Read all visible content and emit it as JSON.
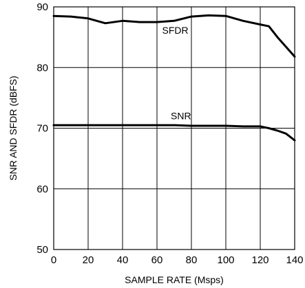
{
  "chart_data": {
    "type": "line",
    "xlabel": "SAMPLE RATE (Msps)",
    "ylabel": "SNR AND SFDR (dBFS)",
    "xlim": [
      0,
      140
    ],
    "ylim": [
      50,
      90
    ],
    "xticks": [
      0,
      20,
      40,
      60,
      80,
      100,
      120,
      140
    ],
    "yticks": [
      50,
      60,
      70,
      80,
      90
    ],
    "grid": true,
    "series": [
      {
        "name": "SFDR",
        "x": [
          0,
          10,
          20,
          30,
          40,
          50,
          60,
          70,
          80,
          90,
          100,
          110,
          120,
          125,
          130,
          135,
          140
        ],
        "y": [
          88.5,
          88.4,
          88.1,
          87.3,
          87.7,
          87.5,
          87.5,
          87.7,
          88.4,
          88.6,
          88.5,
          87.7,
          87.1,
          86.8,
          85.0,
          83.4,
          81.8
        ]
      },
      {
        "name": "SNR",
        "x": [
          0,
          20,
          40,
          60,
          70,
          80,
          90,
          100,
          110,
          120,
          125,
          130,
          135,
          140
        ],
        "y": [
          70.5,
          70.5,
          70.5,
          70.5,
          70.5,
          70.4,
          70.4,
          70.4,
          70.3,
          70.3,
          70.0,
          69.6,
          69.1,
          68.0
        ]
      }
    ]
  }
}
